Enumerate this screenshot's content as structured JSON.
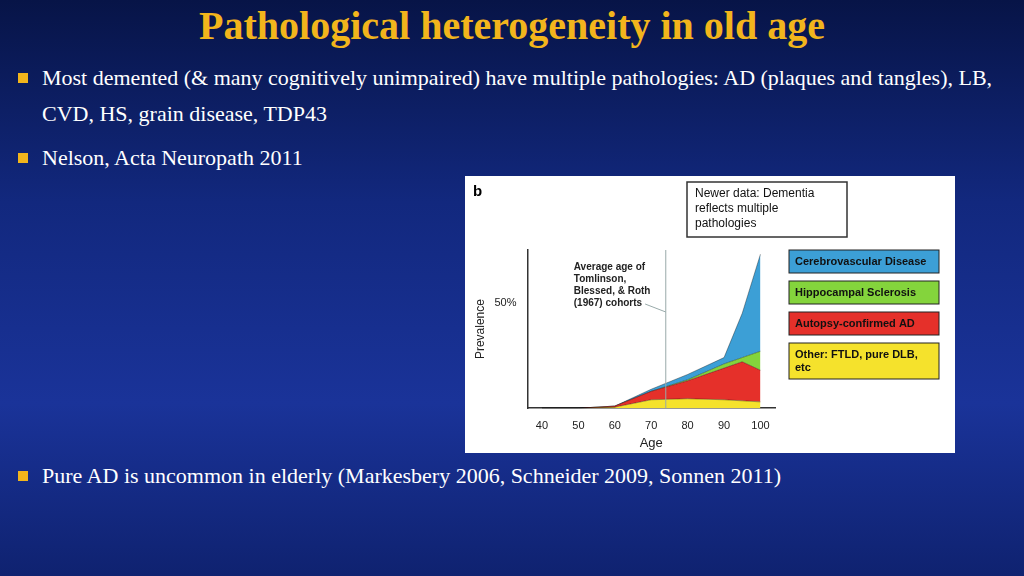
{
  "slide": {
    "title": "Pathological heterogeneity in old age",
    "bullets": [
      "Most demented (& many cognitively unimpaired) have multiple pathologies: AD (plaques and tangles), LB, CVD, HS, grain disease, TDP43",
      "Nelson, Acta Neuropath 2011",
      "Pure AD is uncommon in elderly (Markesbery 2006,  Schneider 2009, Sonnen 2011)"
    ]
  },
  "chart_data": {
    "type": "area",
    "title": "b",
    "stacked": true,
    "grid": false,
    "legend": "right",
    "x_label": "Age",
    "y_label": "Prevalence",
    "x": [
      40,
      50,
      60,
      70,
      80,
      90,
      95,
      100
    ],
    "series": [
      {
        "name": "Other: FTLD, pure DLB, etc",
        "color": "#f5e22c",
        "values": [
          0,
          0,
          0.5,
          4,
          4.5,
          4,
          3.5,
          3
        ]
      },
      {
        "name": "Autopsy-confirmed AD",
        "color": "#e5302a",
        "values": [
          0,
          0,
          0.5,
          4,
          8.5,
          15,
          18.5,
          15
        ]
      },
      {
        "name": "Hippocampal Sclerosis",
        "color": "#84d43c",
        "values": [
          0,
          0,
          0,
          0,
          0.5,
          2,
          2,
          9
        ]
      },
      {
        "name": "Cerebrovascular Disease",
        "color": "#3c9fd6",
        "values": [
          0,
          0,
          0,
          1,
          2.5,
          3,
          21,
          46
        ]
      }
    ],
    "xlim": [
      36,
      104
    ],
    "xticks": [
      40,
      50,
      60,
      70,
      80,
      90,
      100
    ],
    "ylim": [
      0,
      75
    ],
    "yticks": [
      {
        "value": 50,
        "label": "50%"
      }
    ],
    "annotations": [
      {
        "text": "Newer data: Dementia reflects multiple pathologies"
      },
      {
        "text": "Average age of Tomlinson, Blessed, & Roth (1967) cohorts",
        "x": 74
      }
    ]
  }
}
